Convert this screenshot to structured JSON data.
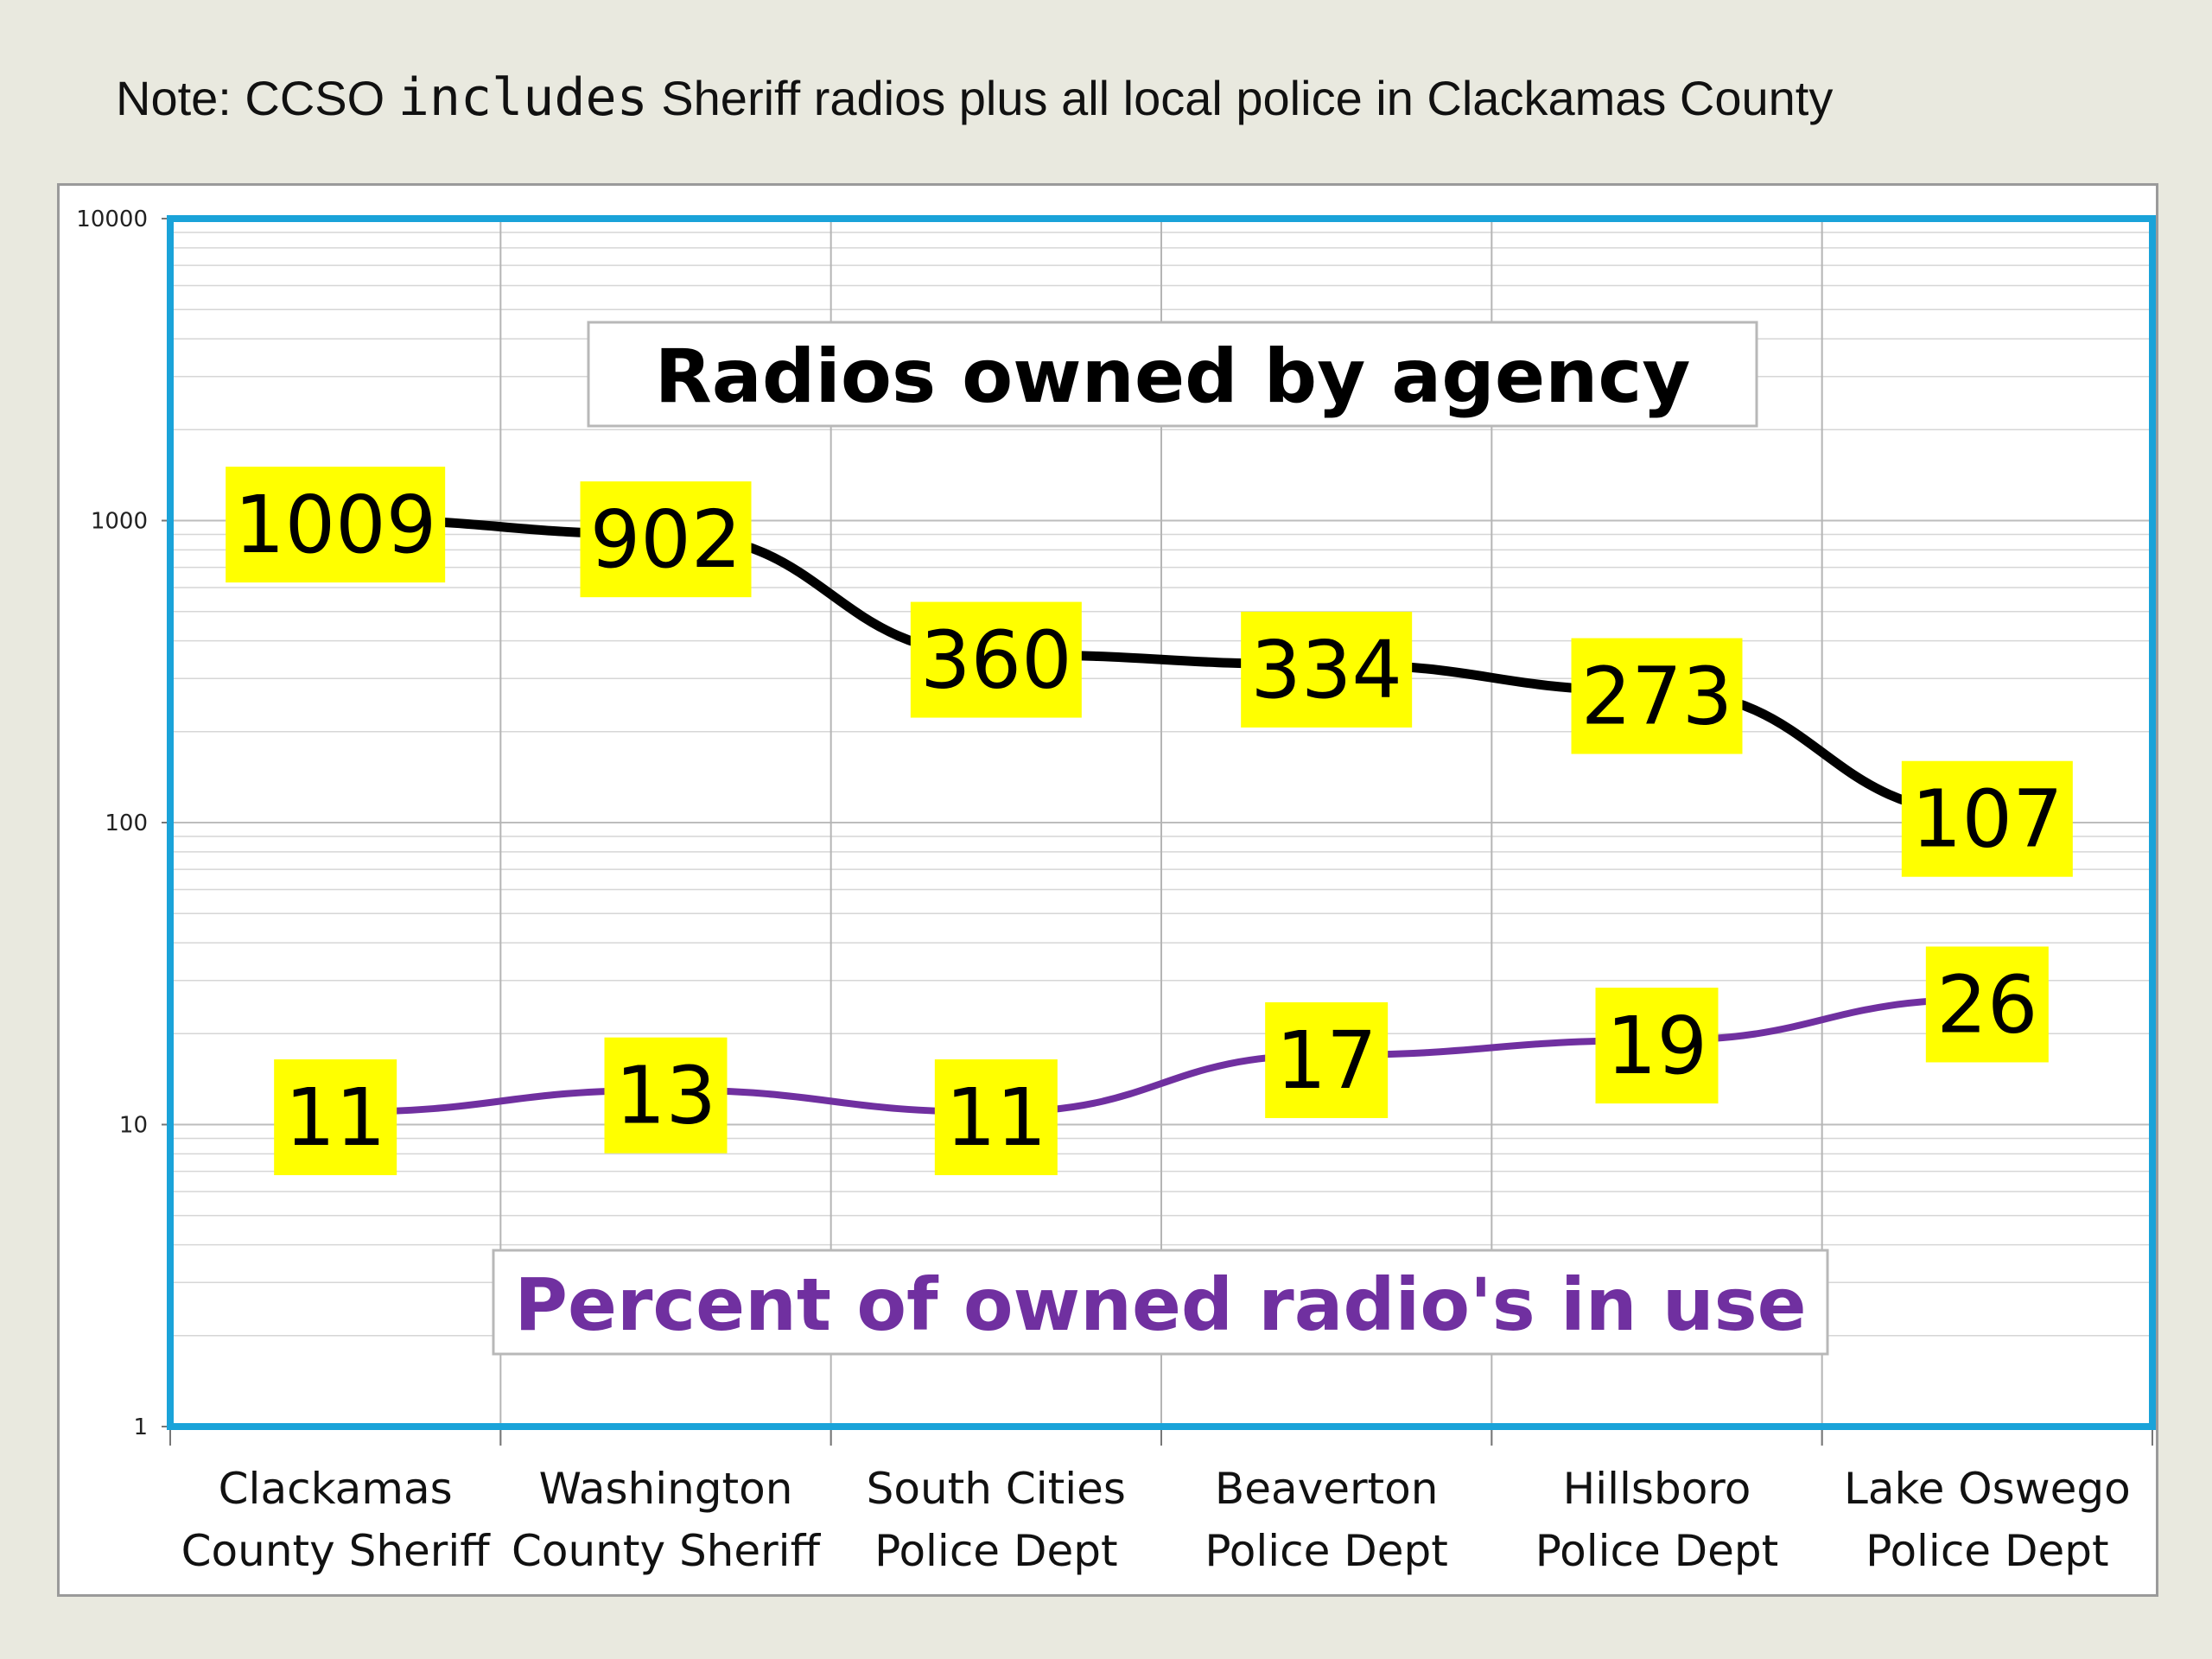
{
  "note": {
    "prefix": "Note: CCSO ",
    "mono": "includes",
    "suffix": " Sheriff radios plus all local police in Clackamas County"
  },
  "chart_data": {
    "type": "line",
    "y_scale": "log",
    "ylim": [
      1,
      10000
    ],
    "y_ticks": [
      "1",
      "10",
      "100",
      "1000",
      "10000"
    ],
    "grid": true,
    "categories": [
      [
        "Clackamas",
        "County Sheriff"
      ],
      [
        "Washington",
        "County Sheriff"
      ],
      [
        "South Cities",
        "Police Dept"
      ],
      [
        "Beaverton",
        "Police Dept"
      ],
      [
        "Hillsboro",
        "Police Dept"
      ],
      [
        "Lake Oswego",
        "Police Dept"
      ]
    ],
    "series": [
      {
        "name": "Radios owned by agency",
        "values": [
          1009,
          902,
          360,
          334,
          273,
          107
        ],
        "color": "#000000",
        "label_bg": "#ffff00"
      },
      {
        "name": "Percent of owned radio's in use",
        "values": [
          11,
          13,
          11,
          17,
          19,
          26
        ],
        "color": "#7030a0",
        "label_bg": "#ffff00"
      }
    ],
    "plot_border_color": "#1aa3d9"
  }
}
